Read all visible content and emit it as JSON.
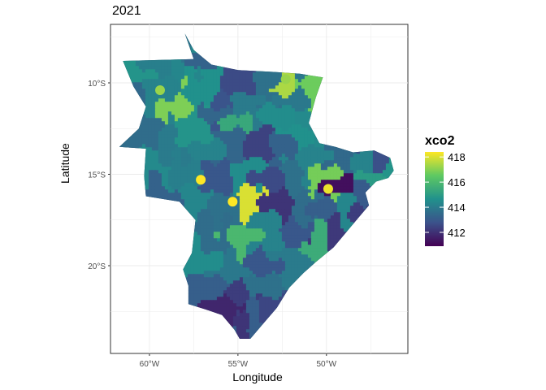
{
  "title": "2021",
  "chart_data": {
    "type": "choropleth",
    "xlabel": "Longitude",
    "ylabel": "Latitude",
    "x_ticks": [
      "60°W",
      "55°W",
      "50°W"
    ],
    "x_tick_values": [
      -60,
      -55,
      -50
    ],
    "y_ticks": [
      "10°S",
      "15°S",
      "20°S"
    ],
    "y_tick_values": [
      -10,
      -15,
      -20
    ],
    "xlim": [
      -62.2,
      -45.4
    ],
    "ylim": [
      -24.8,
      -6.8
    ],
    "grid": true,
    "legend": {
      "title": "xco2",
      "placement": "right",
      "ticks": [
        "418",
        "416",
        "414",
        "412"
      ],
      "tick_values": [
        418,
        416,
        414,
        412
      ],
      "range": [
        410.9,
        418.4
      ],
      "colormap": "viridis"
    },
    "region_outline": [
      [
        -58.0,
        -7.3
      ],
      [
        -57.5,
        -8.2
      ],
      [
        -56.5,
        -9.0
      ],
      [
        -55.0,
        -9.3
      ],
      [
        -53.0,
        -9.4
      ],
      [
        -51.5,
        -9.5
      ],
      [
        -50.2,
        -9.7
      ],
      [
        -50.6,
        -10.8
      ],
      [
        -51.0,
        -12.2
      ],
      [
        -50.4,
        -13.3
      ],
      [
        -49.5,
        -13.5
      ],
      [
        -48.5,
        -13.8
      ],
      [
        -47.3,
        -13.7
      ],
      [
        -46.4,
        -14.1
      ],
      [
        -46.2,
        -14.8
      ],
      [
        -46.5,
        -15.2
      ],
      [
        -47.2,
        -15.4
      ],
      [
        -47.8,
        -16.0
      ],
      [
        -47.6,
        -16.7
      ],
      [
        -48.3,
        -17.5
      ],
      [
        -49.6,
        -19.0
      ],
      [
        -50.6,
        -19.8
      ],
      [
        -51.3,
        -20.4
      ],
      [
        -52.1,
        -21.2
      ],
      [
        -52.8,
        -22.3
      ],
      [
        -53.6,
        -23.2
      ],
      [
        -54.3,
        -24.0
      ],
      [
        -54.9,
        -24.0
      ],
      [
        -55.2,
        -23.5
      ],
      [
        -55.9,
        -22.7
      ],
      [
        -56.8,
        -22.4
      ],
      [
        -57.8,
        -22.1
      ],
      [
        -57.8,
        -21.1
      ],
      [
        -58.1,
        -20.2
      ],
      [
        -57.6,
        -19.3
      ],
      [
        -57.4,
        -17.5
      ],
      [
        -58.3,
        -16.5
      ],
      [
        -60.2,
        -16.2
      ],
      [
        -60.3,
        -15.1
      ],
      [
        -60.2,
        -13.6
      ],
      [
        -61.7,
        -13.5
      ],
      [
        -60.6,
        -12.5
      ],
      [
        -60.2,
        -11.3
      ],
      [
        -60.9,
        -10.2
      ],
      [
        -61.5,
        -8.8
      ],
      [
        -57.5,
        -8.7
      ]
    ],
    "fill_range": [
      411.0,
      418.0
    ],
    "regions": [
      {
        "lon": -58.2,
        "lat": -8.5,
        "xco2": 414.2
      },
      {
        "lon": -56.9,
        "lat": -8.4,
        "xco2": 413.2
      },
      {
        "lon": -59.8,
        "lat": -8.9,
        "xco2": 414.0
      },
      {
        "lon": -60.8,
        "lat": -9.4,
        "xco2": 414.6
      },
      {
        "lon": -54.8,
        "lat": -9.8,
        "xco2": 412.6
      },
      {
        "lon": -53.4,
        "lat": -10.2,
        "xco2": 413.6
      },
      {
        "lon": -52.3,
        "lat": -9.8,
        "xco2": 417.1
      },
      {
        "lon": -50.9,
        "lat": -10.4,
        "xco2": 416.4
      },
      {
        "lon": -51.6,
        "lat": -10.8,
        "xco2": 413.8
      },
      {
        "lon": -56.9,
        "lat": -10.3,
        "xco2": 414.5
      },
      {
        "lon": -59.3,
        "lat": -10.7,
        "xco2": 414.1
      },
      {
        "lon": -58.6,
        "lat": -11.3,
        "xco2": 416.6
      },
      {
        "lon": -60.9,
        "lat": -10.9,
        "xco2": 413.4
      },
      {
        "lon": -55.8,
        "lat": -11.4,
        "xco2": 412.8
      },
      {
        "lon": -54.6,
        "lat": -11.4,
        "xco2": 413.9
      },
      {
        "lon": -52.9,
        "lat": -11.8,
        "xco2": 414.4
      },
      {
        "lon": -57.4,
        "lat": -12.4,
        "xco2": 414.6
      },
      {
        "lon": -56.2,
        "lat": -12.1,
        "xco2": 413.3
      },
      {
        "lon": -55.3,
        "lat": -12.0,
        "xco2": 415.2
      },
      {
        "lon": -53.8,
        "lat": -13.4,
        "xco2": 412.4
      },
      {
        "lon": -52.4,
        "lat": -13.5,
        "xco2": 413.2
      },
      {
        "lon": -51.3,
        "lat": -13.0,
        "xco2": 414.5
      },
      {
        "lon": -60.3,
        "lat": -12.8,
        "xco2": 413.5
      },
      {
        "lon": -58.9,
        "lat": -13.6,
        "xco2": 413.9
      },
      {
        "lon": -56.7,
        "lat": -13.7,
        "xco2": 414.1
      },
      {
        "lon": -55.2,
        "lat": -13.6,
        "xco2": 413.3
      },
      {
        "lon": -59.8,
        "lat": -14.5,
        "xco2": 414.3
      },
      {
        "lon": -57.9,
        "lat": -14.8,
        "xco2": 414.0
      },
      {
        "lon": -56.2,
        "lat": -15.3,
        "xco2": 412.9
      },
      {
        "lon": -54.6,
        "lat": -15.0,
        "xco2": 414.4
      },
      {
        "lon": -53.3,
        "lat": -15.4,
        "xco2": 412.6
      },
      {
        "lon": -51.8,
        "lat": -15.5,
        "xco2": 413.6
      },
      {
        "lon": -50.8,
        "lat": -14.2,
        "xco2": 414.1
      },
      {
        "lon": -49.3,
        "lat": -14.1,
        "xco2": 413.4
      },
      {
        "lon": -48.1,
        "lat": -14.4,
        "xco2": 414.1
      },
      {
        "lon": -47.1,
        "lat": -14.4,
        "xco2": 412.7
      },
      {
        "lon": -46.6,
        "lat": -14.9,
        "xco2": 414.6
      },
      {
        "lon": -50.0,
        "lat": -15.2,
        "xco2": 416.5
      },
      {
        "lon": -49.3,
        "lat": -15.6,
        "xco2": 411.3
      },
      {
        "lon": -48.0,
        "lat": -15.9,
        "xco2": 413.0
      },
      {
        "lon": -47.4,
        "lat": -15.4,
        "xco2": 414.8
      },
      {
        "lon": -59.4,
        "lat": -16.0,
        "xco2": 413.2
      },
      {
        "lon": -57.5,
        "lat": -16.4,
        "xco2": 414.2
      },
      {
        "lon": -55.8,
        "lat": -16.9,
        "xco2": 413.6
      },
      {
        "lon": -54.4,
        "lat": -16.4,
        "xco2": 417.6
      },
      {
        "lon": -52.6,
        "lat": -16.6,
        "xco2": 412.1
      },
      {
        "lon": -51.3,
        "lat": -16.9,
        "xco2": 413.5
      },
      {
        "lon": -50.2,
        "lat": -16.8,
        "xco2": 413.1
      },
      {
        "lon": -49.0,
        "lat": -16.9,
        "xco2": 414.2
      },
      {
        "lon": -48.2,
        "lat": -17.0,
        "xco2": 412.3
      },
      {
        "lon": -56.5,
        "lat": -18.1,
        "xco2": 413.5
      },
      {
        "lon": -54.9,
        "lat": -18.5,
        "xco2": 415.7
      },
      {
        "lon": -53.3,
        "lat": -18.1,
        "xco2": 414.1
      },
      {
        "lon": -51.8,
        "lat": -18.3,
        "xco2": 412.9
      },
      {
        "lon": -50.4,
        "lat": -18.6,
        "xco2": 415.3
      },
      {
        "lon": -49.4,
        "lat": -18.4,
        "xco2": 412.2
      },
      {
        "lon": -57.0,
        "lat": -19.6,
        "xco2": 414.4
      },
      {
        "lon": -55.4,
        "lat": -20.1,
        "xco2": 413.8
      },
      {
        "lon": -53.7,
        "lat": -19.9,
        "xco2": 412.9
      },
      {
        "lon": -52.1,
        "lat": -20.0,
        "xco2": 413.9
      },
      {
        "lon": -56.7,
        "lat": -21.1,
        "xco2": 413.1
      },
      {
        "lon": -54.9,
        "lat": -21.6,
        "xco2": 412.3
      },
      {
        "lon": -53.6,
        "lat": -21.4,
        "xco2": 413.6
      },
      {
        "lon": -55.6,
        "lat": -22.6,
        "xco2": 411.8
      },
      {
        "lon": -54.2,
        "lat": -22.9,
        "xco2": 413.1
      },
      {
        "lon": -53.2,
        "lat": -22.6,
        "xco2": 412.5
      },
      {
        "lon": -54.7,
        "lat": -23.6,
        "xco2": 412.1
      },
      {
        "lon": -51.0,
        "lat": -12.4,
        "xco2": 414.3
      },
      {
        "lon": -58.0,
        "lat": -7.9,
        "xco2": 413.7
      }
    ],
    "highlight_regions": [
      {
        "lon": -55.3,
        "lat": -16.5,
        "xco2": 418.0
      },
      {
        "lon": -57.1,
        "lat": -15.3,
        "xco2": 418.0
      },
      {
        "lon": -49.9,
        "lat": -15.8,
        "xco2": 417.8
      },
      {
        "lon": -52.3,
        "lat": -9.8,
        "xco2": 416.9
      },
      {
        "lon": -59.4,
        "lat": -10.4,
        "xco2": 416.9
      }
    ]
  }
}
